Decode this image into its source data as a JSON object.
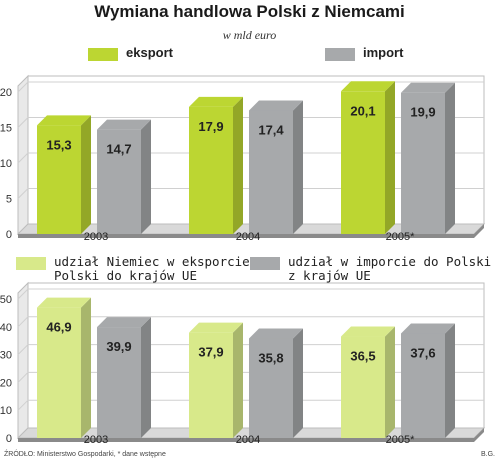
{
  "title": "Wymiana handlowa Polski  z Niemcami",
  "subtitle": "w mld euro",
  "footer": "ŹRÓDŁO: Ministerstwo Gospodarki, * dane wstępne",
  "credit": "B.G.",
  "colors": {
    "green": "#bcd632",
    "green_light": "#d8e98a",
    "gray": "#a7a9ab",
    "frame": "#bdbdbd",
    "frame_dark": "#8a8a8a"
  },
  "legend_top": [
    {
      "label": "eksport",
      "color": "#bcd632"
    },
    {
      "label": "import",
      "color": "#a7a9ab"
    }
  ],
  "legend_bottom": [
    {
      "label": "udział Niemiec w eksporcie Polski do krajów UE",
      "line1": "udział Niemiec w eksporcie",
      "line2": "Polski do krajów UE",
      "color": "#d8e98a"
    },
    {
      "label": "udział w imporcie do Polski z krajów UE",
      "line1": "udział w imporcie do Polski",
      "line2": "z krajów UE",
      "color": "#a7a9ab"
    }
  ],
  "chart_data": [
    {
      "type": "bar",
      "title": "Wymiana handlowa Polski  z Niemcami",
      "subtitle": "w mld euro",
      "categories": [
        "2003",
        "2004",
        "2005*"
      ],
      "series": [
        {
          "name": "eksport",
          "values": [
            15.3,
            17.9,
            20.1
          ],
          "labels": [
            "15,3",
            "17,9",
            "20,1"
          ]
        },
        {
          "name": "import",
          "values": [
            14.7,
            17.4,
            19.9
          ],
          "labels": [
            "14,7",
            "17,4",
            "19,9"
          ]
        }
      ],
      "yticks": [
        "0",
        "5",
        "10",
        "15",
        "20"
      ],
      "ylim": [
        0,
        20
      ],
      "legend": "top"
    },
    {
      "type": "bar",
      "categories": [
        "2003",
        "2004",
        "2005*"
      ],
      "series": [
        {
          "name": "udział Niemiec w eksporcie Polski do krajów UE",
          "values": [
            46.9,
            37.9,
            36.5
          ],
          "labels": [
            "46,9",
            "37,9",
            "36,5"
          ]
        },
        {
          "name": "udział w imporcie do Polski z krajów UE",
          "values": [
            39.9,
            35.8,
            37.6
          ],
          "labels": [
            "39,9",
            "35,8",
            "37,6"
          ]
        }
      ],
      "yticks": [
        "0",
        "10",
        "20",
        "30",
        "40",
        "50"
      ],
      "ylim": [
        0,
        50
      ],
      "legend": "top"
    }
  ]
}
